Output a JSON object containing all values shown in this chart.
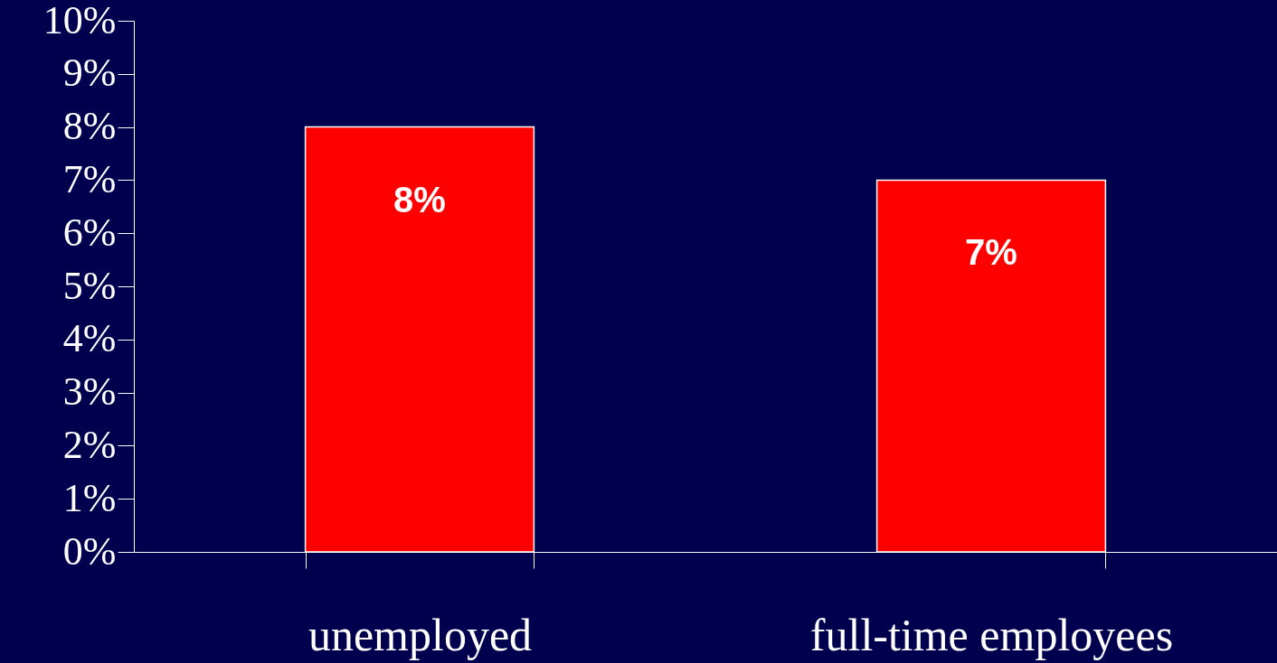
{
  "chart_data": {
    "type": "bar",
    "categories": [
      "unemployed",
      "full-time employees"
    ],
    "values": [
      8,
      7
    ],
    "color": "#ff0000",
    "value_labels": [
      "8%",
      "7%"
    ],
    "ylim": [
      0,
      10
    ],
    "yticks": [
      {
        "value": 0,
        "label": "0%"
      },
      {
        "value": 1,
        "label": "1%"
      },
      {
        "value": 2,
        "label": "2%"
      },
      {
        "value": 3,
        "label": "3%"
      },
      {
        "value": 4,
        "label": "4%"
      },
      {
        "value": 5,
        "label": "5%"
      },
      {
        "value": 6,
        "label": "6%"
      },
      {
        "value": 7,
        "label": "7%"
      },
      {
        "value": 8,
        "label": "8%"
      },
      {
        "value": 9,
        "label": "9%"
      },
      {
        "value": 10,
        "label": "10%"
      }
    ]
  }
}
